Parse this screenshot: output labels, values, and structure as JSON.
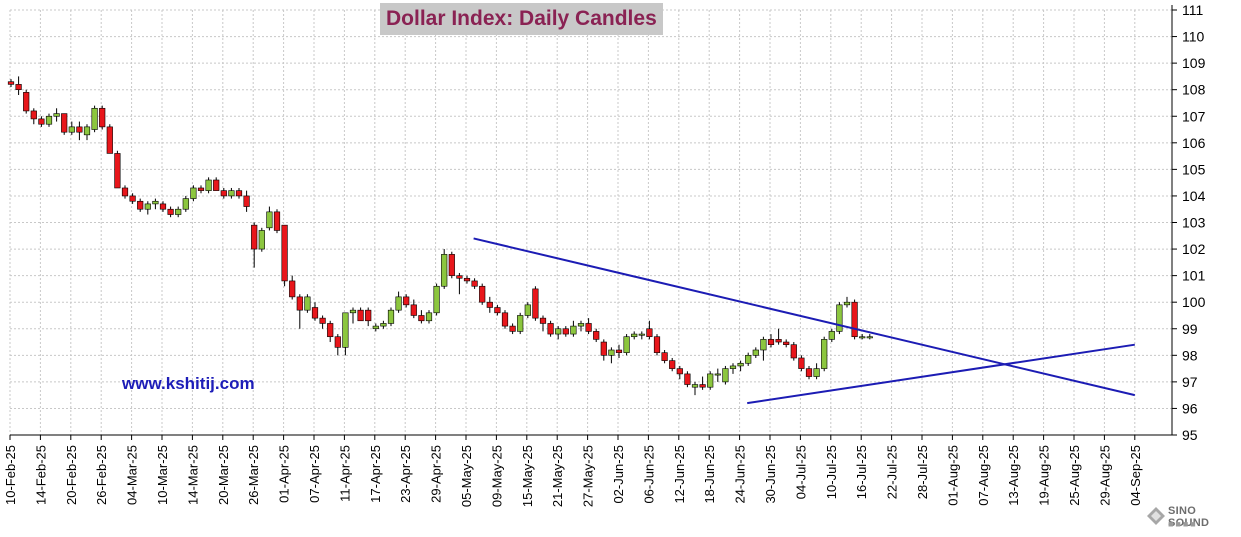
{
  "chart_data": {
    "type": "candlestick",
    "title": "Dollar Index: Daily Candles",
    "watermark": "www.kshitij.com",
    "y_axis": {
      "position": "right",
      "range": [
        95,
        111
      ],
      "ticks": [
        95,
        96,
        97,
        98,
        99,
        100,
        101,
        102,
        103,
        104,
        105,
        106,
        107,
        108,
        109,
        110,
        111
      ]
    },
    "x_axis": {
      "tick_labels": [
        "10-Feb-25",
        "14-Feb-25",
        "20-Feb-25",
        "26-Feb-25",
        "04-Mar-25",
        "10-Mar-25",
        "14-Mar-25",
        "20-Mar-25",
        "26-Mar-25",
        "01-Apr-25",
        "07-Apr-25",
        "11-Apr-25",
        "17-Apr-25",
        "23-Apr-25",
        "29-Apr-25",
        "05-May-25",
        "09-May-25",
        "15-May-25",
        "21-May-25",
        "27-May-25",
        "02-Jun-25",
        "06-Jun-25",
        "12-Jun-25",
        "18-Jun-25",
        "24-Jun-25",
        "30-Jun-25",
        "04-Jul-25",
        "10-Jul-25",
        "16-Jul-25",
        "22-Jul-25",
        "28-Jul-25",
        "01-Aug-25",
        "07-Aug-25",
        "13-Aug-25",
        "19-Aug-25",
        "25-Aug-25",
        "29-Aug-25",
        "04-Sep-25"
      ],
      "tick_step_bars": 4,
      "label_rotation": "vertical"
    },
    "up_color": "#8cc63f",
    "down_color": "#e8161b",
    "line_color": "#1c1cb4",
    "grid": true,
    "candles": [
      [
        108.3,
        108.4,
        108.1,
        108.2
      ],
      [
        108.2,
        108.5,
        107.8,
        108.0
      ],
      [
        107.9,
        108.0,
        107.1,
        107.2
      ],
      [
        107.2,
        107.3,
        106.7,
        106.9
      ],
      [
        106.9,
        107.0,
        106.6,
        106.7
      ],
      [
        106.7,
        107.1,
        106.6,
        107.0
      ],
      [
        107.0,
        107.3,
        106.8,
        107.1
      ],
      [
        107.1,
        107.1,
        106.3,
        106.4
      ],
      [
        106.4,
        106.8,
        106.3,
        106.6
      ],
      [
        106.6,
        106.8,
        106.1,
        106.4
      ],
      [
        106.3,
        106.7,
        106.1,
        106.6
      ],
      [
        106.5,
        107.4,
        106.4,
        107.3
      ],
      [
        107.3,
        107.4,
        106.5,
        106.6
      ],
      [
        106.6,
        106.7,
        105.6,
        105.6
      ],
      [
        105.6,
        105.7,
        104.3,
        104.3
      ],
      [
        104.3,
        104.4,
        103.9,
        104.0
      ],
      [
        104.0,
        104.1,
        103.7,
        103.8
      ],
      [
        103.8,
        103.9,
        103.4,
        103.5
      ],
      [
        103.5,
        103.8,
        103.3,
        103.7
      ],
      [
        103.7,
        103.9,
        103.5,
        103.8
      ],
      [
        103.7,
        103.8,
        103.4,
        103.5
      ],
      [
        103.5,
        103.6,
        103.2,
        103.3
      ],
      [
        103.3,
        103.6,
        103.2,
        103.5
      ],
      [
        103.5,
        104.0,
        103.4,
        103.9
      ],
      [
        103.9,
        104.4,
        103.8,
        104.3
      ],
      [
        104.3,
        104.4,
        104.1,
        104.2
      ],
      [
        104.2,
        104.7,
        104.1,
        104.6
      ],
      [
        104.6,
        104.7,
        104.2,
        104.2
      ],
      [
        104.2,
        104.3,
        103.9,
        104.0
      ],
      [
        104.0,
        104.3,
        103.9,
        104.2
      ],
      [
        104.2,
        104.3,
        103.9,
        104.0
      ],
      [
        104.0,
        104.2,
        103.4,
        103.6
      ],
      [
        102.9,
        103.0,
        101.3,
        102.0
      ],
      [
        102.0,
        102.8,
        101.9,
        102.7
      ],
      [
        102.8,
        103.6,
        102.7,
        103.4
      ],
      [
        103.4,
        103.5,
        102.6,
        102.7
      ],
      [
        102.9,
        102.9,
        100.6,
        100.8
      ],
      [
        100.8,
        101.0,
        100.1,
        100.2
      ],
      [
        100.2,
        100.3,
        99.0,
        99.7
      ],
      [
        99.7,
        100.3,
        99.6,
        100.2
      ],
      [
        99.8,
        100.0,
        99.3,
        99.4
      ],
      [
        99.4,
        99.5,
        99.0,
        99.2
      ],
      [
        99.2,
        99.3,
        98.5,
        98.7
      ],
      [
        98.7,
        98.8,
        98.0,
        98.3
      ],
      [
        98.3,
        99.6,
        98.0,
        99.6
      ],
      [
        99.6,
        99.8,
        99.2,
        99.7
      ],
      [
        99.7,
        99.8,
        99.3,
        99.3
      ],
      [
        99.7,
        99.8,
        99.1,
        99.3
      ],
      [
        99.0,
        99.2,
        98.9,
        99.1
      ],
      [
        99.1,
        99.3,
        99.0,
        99.2
      ],
      [
        99.2,
        99.8,
        99.1,
        99.7
      ],
      [
        99.7,
        100.4,
        99.6,
        100.2
      ],
      [
        100.2,
        100.3,
        99.8,
        99.9
      ],
      [
        99.9,
        100.1,
        99.4,
        99.5
      ],
      [
        99.5,
        99.7,
        99.2,
        99.3
      ],
      [
        99.3,
        99.7,
        99.2,
        99.6
      ],
      [
        99.6,
        100.7,
        99.5,
        100.6
      ],
      [
        100.6,
        102.0,
        100.5,
        101.8
      ],
      [
        101.8,
        101.9,
        100.9,
        101.0
      ],
      [
        101.0,
        101.1,
        100.3,
        100.9
      ],
      [
        100.9,
        101.0,
        100.7,
        100.8
      ],
      [
        100.8,
        100.9,
        100.5,
        100.6
      ],
      [
        100.6,
        100.7,
        99.9,
        100.0
      ],
      [
        100.0,
        100.2,
        99.6,
        99.8
      ],
      [
        99.8,
        99.9,
        99.5,
        99.6
      ],
      [
        99.6,
        99.7,
        99.0,
        99.1
      ],
      [
        99.1,
        99.2,
        98.8,
        98.9
      ],
      [
        98.9,
        99.6,
        98.8,
        99.5
      ],
      [
        99.5,
        100.0,
        99.4,
        99.9
      ],
      [
        100.5,
        100.6,
        99.3,
        99.4
      ],
      [
        99.4,
        99.5,
        98.9,
        99.2
      ],
      [
        99.2,
        99.3,
        98.7,
        98.8
      ],
      [
        98.8,
        99.1,
        98.6,
        99.0
      ],
      [
        99.0,
        99.1,
        98.7,
        98.8
      ],
      [
        98.8,
        99.3,
        98.7,
        99.1
      ],
      [
        99.1,
        99.3,
        98.9,
        99.2
      ],
      [
        99.2,
        99.4,
        98.8,
        98.9
      ],
      [
        98.9,
        99.0,
        98.5,
        98.6
      ],
      [
        98.5,
        98.6,
        97.8,
        98.0
      ],
      [
        98.0,
        98.3,
        97.7,
        98.2
      ],
      [
        98.2,
        98.4,
        97.9,
        98.1
      ],
      [
        98.1,
        98.8,
        98.0,
        98.7
      ],
      [
        98.7,
        98.9,
        98.6,
        98.8
      ],
      [
        98.8,
        98.9,
        98.6,
        98.8
      ],
      [
        99.0,
        99.3,
        98.6,
        98.7
      ],
      [
        98.7,
        98.8,
        98.0,
        98.1
      ],
      [
        98.1,
        98.2,
        97.7,
        97.8
      ],
      [
        97.8,
        97.9,
        97.4,
        97.5
      ],
      [
        97.5,
        97.6,
        97.1,
        97.3
      ],
      [
        97.3,
        97.4,
        96.8,
        96.9
      ],
      [
        96.8,
        97.0,
        96.5,
        96.9
      ],
      [
        96.9,
        97.2,
        96.7,
        96.8
      ],
      [
        96.8,
        97.4,
        96.7,
        97.3
      ],
      [
        97.3,
        97.5,
        97.0,
        97.3
      ],
      [
        97.0,
        97.6,
        96.9,
        97.5
      ],
      [
        97.5,
        97.7,
        97.3,
        97.6
      ],
      [
        97.6,
        97.8,
        97.4,
        97.7
      ],
      [
        97.7,
        98.1,
        97.6,
        98.0
      ],
      [
        98.0,
        98.3,
        97.9,
        98.2
      ],
      [
        98.2,
        98.7,
        97.8,
        98.6
      ],
      [
        98.6,
        98.8,
        98.3,
        98.4
      ],
      [
        98.6,
        99.0,
        98.4,
        98.5
      ],
      [
        98.5,
        98.6,
        98.3,
        98.4
      ],
      [
        98.4,
        98.5,
        97.8,
        97.9
      ],
      [
        97.9,
        98.0,
        97.4,
        97.5
      ],
      [
        97.5,
        97.6,
        97.1,
        97.2
      ],
      [
        97.2,
        97.7,
        97.1,
        97.5
      ],
      [
        97.5,
        98.7,
        97.4,
        98.6
      ],
      [
        98.6,
        99.0,
        98.5,
        98.9
      ],
      [
        98.9,
        100.0,
        98.8,
        99.9
      ],
      [
        99.9,
        100.2,
        99.8,
        100.0
      ],
      [
        100.0,
        100.1,
        98.6,
        98.7
      ],
      [
        98.7,
        98.8,
        98.6,
        98.7
      ],
      [
        98.7,
        98.8,
        98.6,
        98.7
      ]
    ],
    "trendlines": [
      {
        "name": "",
        "from": [
          "06-May-25",
          102.4
        ],
        "to": [
          "04-Sep-25",
          96.5
        ]
      },
      {
        "name": "",
        "from": [
          "25-Jun-25",
          96.2
        ],
        "to": [
          "04-Sep-25",
          98.4
        ]
      }
    ]
  },
  "logo": {
    "text": "SINO SOUND",
    "sub": "■■■■"
  }
}
